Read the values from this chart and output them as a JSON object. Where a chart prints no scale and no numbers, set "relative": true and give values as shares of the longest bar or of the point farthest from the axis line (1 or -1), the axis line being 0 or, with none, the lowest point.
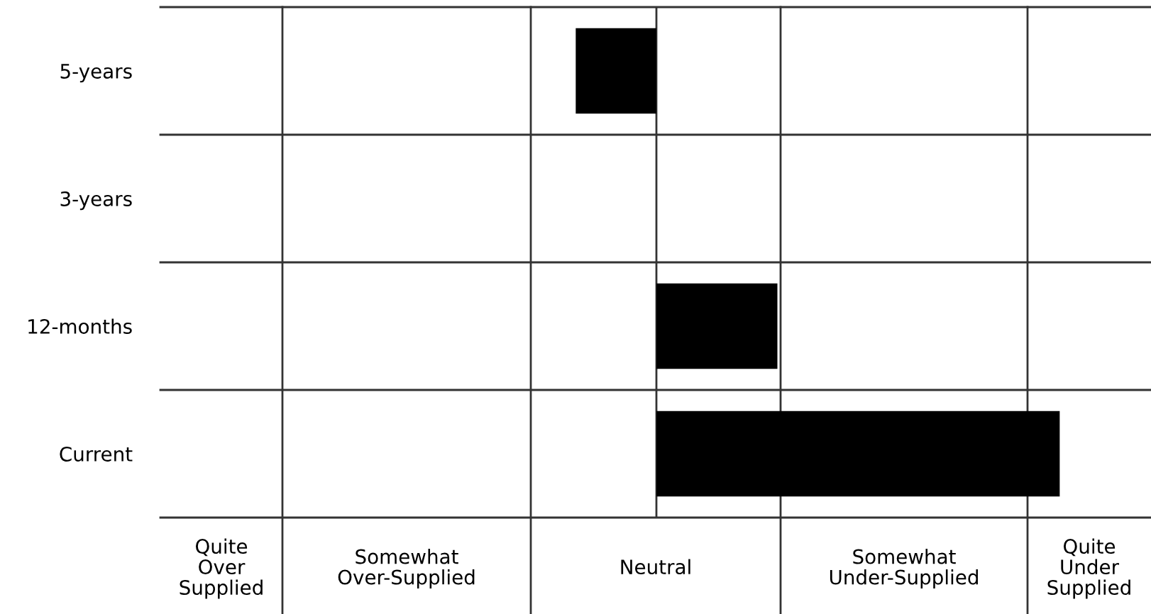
{
  "chart_data": {
    "type": "bar",
    "orientation": "horizontal",
    "relative": true,
    "categories": [
      "5-years",
      "3-years",
      "12-months",
      "Current"
    ],
    "values": [
      -0.2,
      0,
      0.3,
      1
    ],
    "color": "#000000",
    "annotations": [
      "Quite\nOver\nSupplied",
      "Somewhat\nOver-Supplied",
      "Neutral",
      "Somewhat\nUnder-Supplied",
      "Quite\nUnder\nSupplied"
    ]
  }
}
